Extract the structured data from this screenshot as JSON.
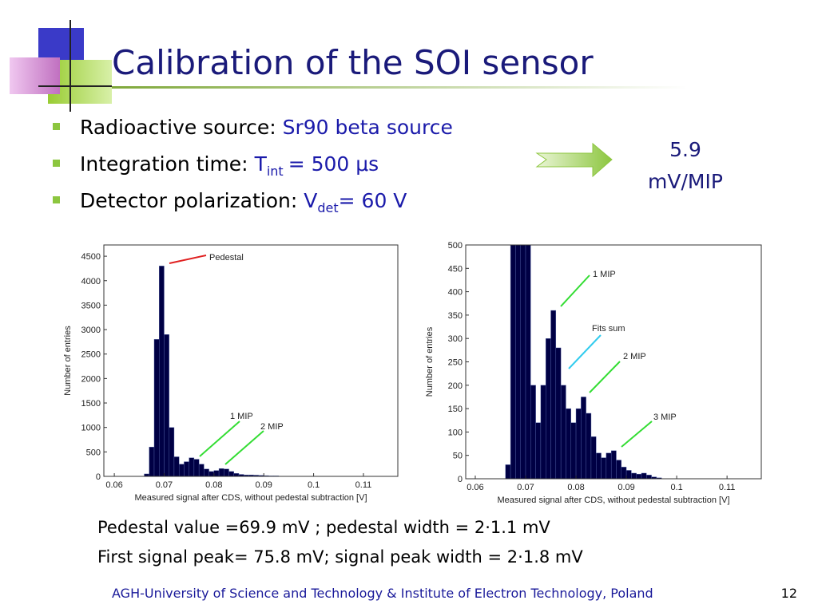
{
  "title": "Calibration of the SOI sensor",
  "bullets": [
    {
      "label": "Radioactive source:",
      "value": "Sr90 beta source"
    },
    {
      "label": "Integration time:",
      "value": "T",
      "sub": "int",
      "rest": "= 500 μs"
    },
    {
      "label": "Detector polarization:",
      "value": "V",
      "sub": "det",
      "rest": "= 60 V"
    }
  ],
  "result": [
    "5.9",
    "mV/MIP"
  ],
  "captions": [
    "Pedestal value =69.9 mV ; pedestal width = 2·1.1 mV",
    "First signal peak= 75.8 mV; signal peak width = 2·1.8 mV"
  ],
  "footer": "AGH-University of Science and Technology & Institute of Electron Technology, Poland",
  "page_number": "12",
  "chart_data": [
    {
      "type": "histogram",
      "xlabel": "Measured signal after CDS, without pedestal subtraction [V]",
      "ylabel": "Number of entries",
      "annotations": [
        "Pedestal",
        "1 MIP",
        "2 MIP"
      ],
      "color": "#000044",
      "bins": [
        0.065,
        0.066,
        0.067,
        0.068,
        0.069,
        0.07,
        0.071,
        0.072,
        0.073,
        0.074,
        0.075,
        0.076,
        0.077,
        0.078,
        0.079,
        0.08,
        0.081,
        0.082,
        0.083,
        0.084,
        0.085,
        0.086,
        0.087,
        0.088,
        0.089,
        0.09,
        0.091,
        0.092,
        0.093,
        0.094,
        0.095,
        0.096,
        0.097,
        0.098,
        0.099,
        0.1
      ],
      "counts": [
        0,
        50,
        600,
        2800,
        4300,
        2900,
        1000,
        400,
        250,
        300,
        380,
        350,
        250,
        150,
        100,
        120,
        160,
        150,
        100,
        60,
        40,
        30,
        30,
        25,
        20,
        15,
        10,
        10,
        5,
        0,
        0,
        0,
        0,
        0,
        0
      ],
      "xlim": [
        0.0579,
        0.1169
      ],
      "xticks": [
        0.06,
        0.07,
        0.08,
        0.09,
        0.1,
        0.11
      ],
      "ylim": [
        0,
        4730
      ],
      "yticks": [
        0,
        500,
        1000,
        1500,
        2000,
        2500,
        3000,
        3500,
        4000,
        4500
      ]
    },
    {
      "type": "histogram",
      "xlabel": "Measured signal after CDS, without pedestal subtraction [V]",
      "ylabel": "Number of entries",
      "annotations": [
        "1 MIP",
        "Fits sum",
        "2 MIP",
        "3 MIP"
      ],
      "color": "#000044",
      "bins": [
        0.065,
        0.066,
        0.067,
        0.068,
        0.069,
        0.07,
        0.071,
        0.072,
        0.073,
        0.074,
        0.075,
        0.076,
        0.077,
        0.078,
        0.079,
        0.08,
        0.081,
        0.082,
        0.083,
        0.084,
        0.085,
        0.086,
        0.087,
        0.088,
        0.089,
        0.09,
        0.091,
        0.092,
        0.093,
        0.094,
        0.095,
        0.096,
        0.097,
        0.098,
        0.099,
        0.1
      ],
      "counts": [
        0,
        30,
        500,
        500,
        500,
        500,
        200,
        120,
        200,
        300,
        360,
        280,
        200,
        150,
        120,
        150,
        175,
        140,
        90,
        55,
        45,
        55,
        60,
        40,
        25,
        18,
        12,
        10,
        12,
        8,
        4,
        2,
        0,
        0,
        0
      ],
      "xlim": [
        0.0581,
        0.1168
      ],
      "xticks": [
        0.06,
        0.07,
        0.08,
        0.09,
        0.1,
        0.11
      ],
      "ylim": [
        0,
        500
      ],
      "yticks": [
        0,
        50,
        100,
        150,
        200,
        250,
        300,
        350,
        400,
        450,
        500
      ]
    }
  ]
}
